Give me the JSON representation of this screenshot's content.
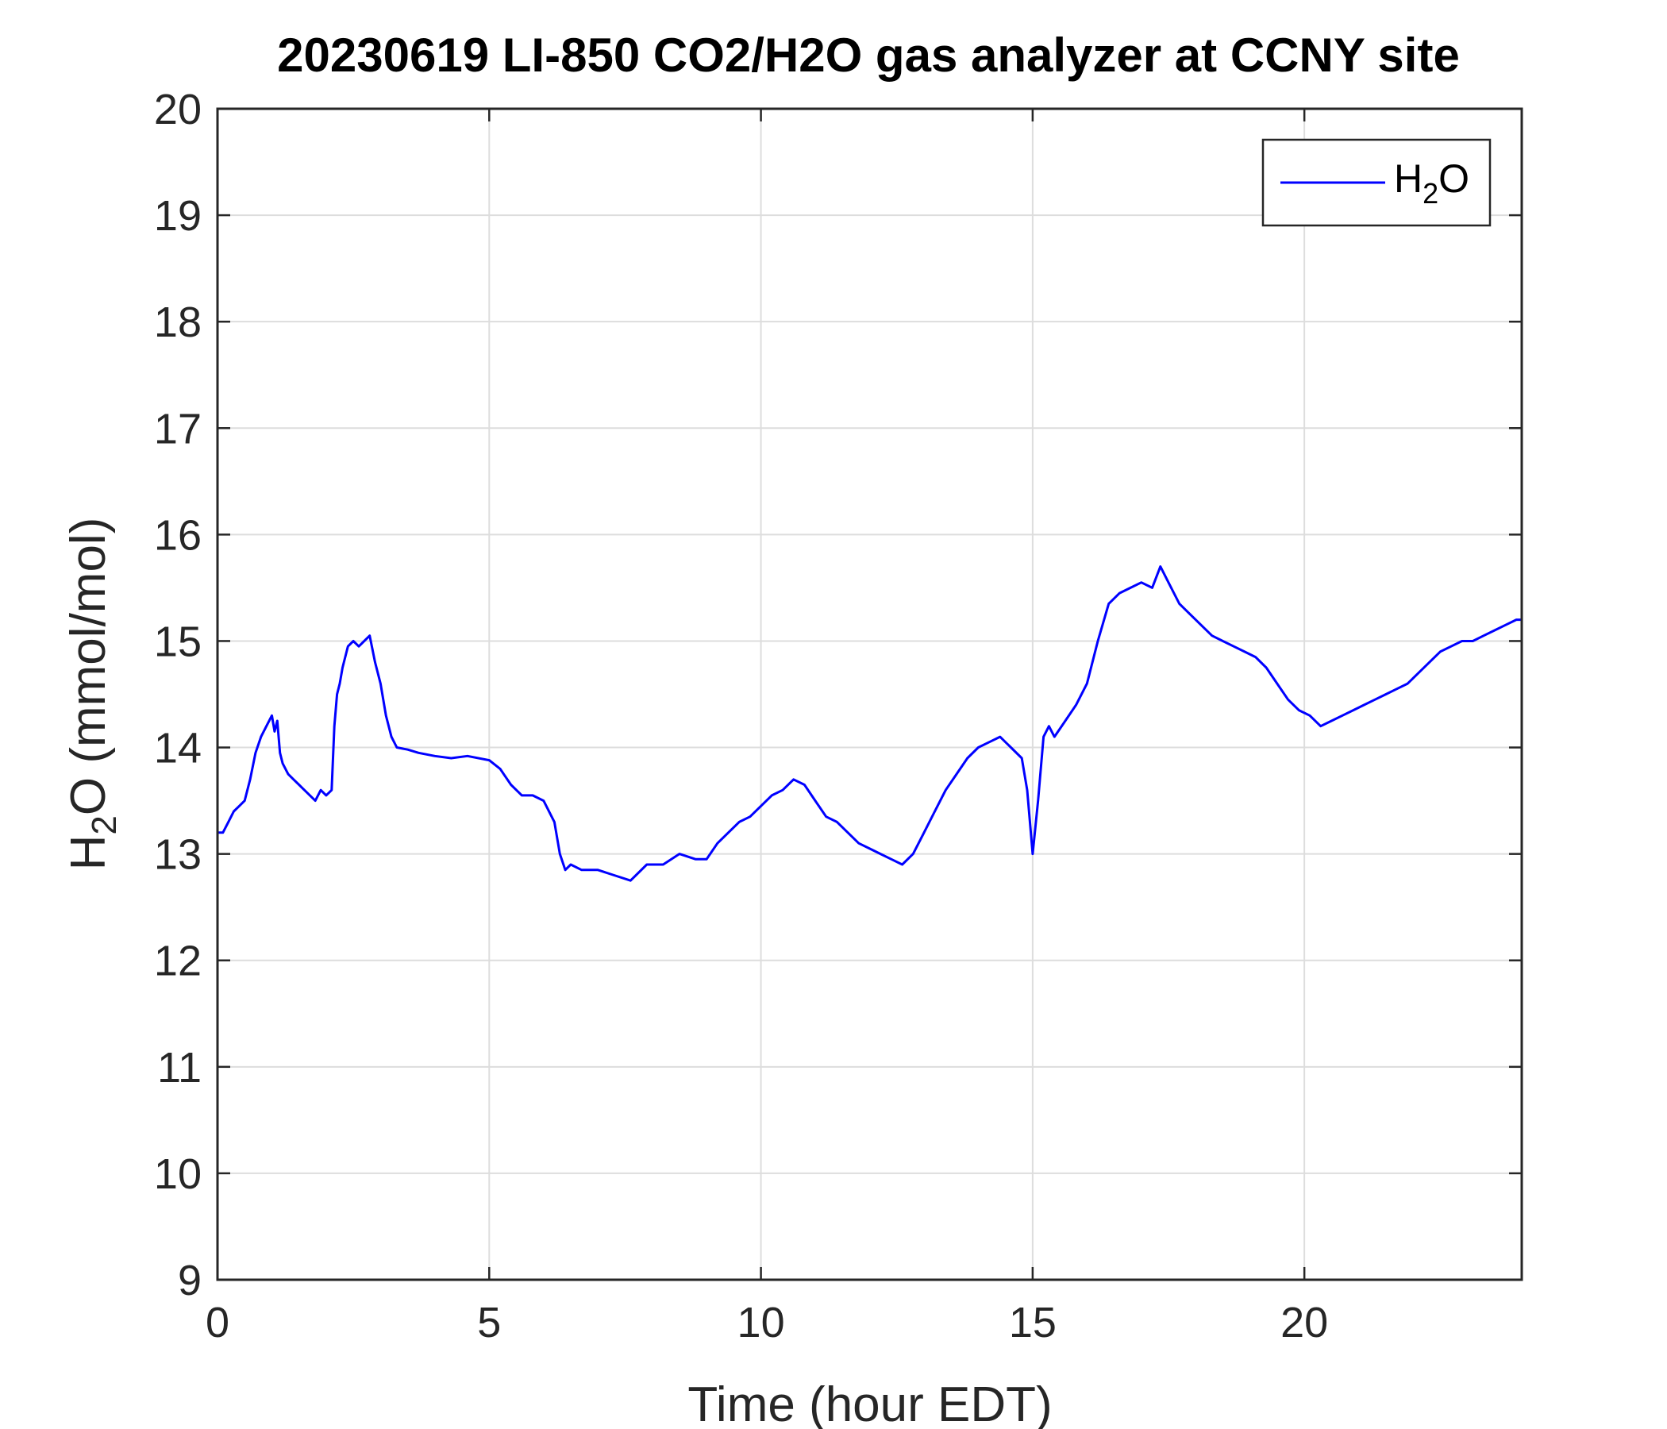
{
  "chart_data": {
    "type": "line",
    "title": "20230619 LI-850 CO2/H2O gas analyzer at CCNY site",
    "xlabel": "Time (hour EDT)",
    "ylabel": {
      "prefix": "H",
      "subscript": "2",
      "suffix": "O (mmol/mol)"
    },
    "xlim": [
      0,
      24
    ],
    "ylim": [
      9,
      20
    ],
    "xticks": [
      0,
      5,
      10,
      15,
      20
    ],
    "yticks": [
      9,
      10,
      11,
      12,
      13,
      14,
      15,
      16,
      17,
      18,
      19,
      20
    ],
    "grid": true,
    "legend": {
      "location": "top-right",
      "entries": [
        {
          "prefix": "H",
          "subscript": "2",
          "suffix": "O"
        }
      ]
    },
    "series": [
      {
        "name": "H2O",
        "color": "#0000ff",
        "x": [
          0,
          0.1,
          0.2,
          0.3,
          0.4,
          0.5,
          0.6,
          0.7,
          0.8,
          0.9,
          1.0,
          1.05,
          1.1,
          1.15,
          1.2,
          1.3,
          1.4,
          1.5,
          1.6,
          1.7,
          1.8,
          1.9,
          2.0,
          2.1,
          2.15,
          2.2,
          2.25,
          2.3,
          2.4,
          2.5,
          2.6,
          2.7,
          2.8,
          2.9,
          3.0,
          3.1,
          3.2,
          3.3,
          3.5,
          3.7,
          4.0,
          4.3,
          4.6,
          5.0,
          5.2,
          5.4,
          5.6,
          5.8,
          6.0,
          6.2,
          6.3,
          6.4,
          6.5,
          6.7,
          7.0,
          7.3,
          7.6,
          7.9,
          8.2,
          8.5,
          8.8,
          9.0,
          9.2,
          9.4,
          9.6,
          9.8,
          10.0,
          10.2,
          10.4,
          10.6,
          10.8,
          11.0,
          11.2,
          11.4,
          11.6,
          11.8,
          12.0,
          12.2,
          12.4,
          12.6,
          12.8,
          13.0,
          13.2,
          13.4,
          13.6,
          13.8,
          14.0,
          14.2,
          14.4,
          14.6,
          14.8,
          14.9,
          15.0,
          15.1,
          15.2,
          15.3,
          15.4,
          15.6,
          15.8,
          16.0,
          16.2,
          16.4,
          16.6,
          16.8,
          17.0,
          17.2,
          17.35,
          17.5,
          17.7,
          17.9,
          18.1,
          18.3,
          18.5,
          18.7,
          18.9,
          19.1,
          19.3,
          19.5,
          19.7,
          19.9,
          20.1,
          20.3,
          20.5,
          20.7,
          20.9,
          21.1,
          21.3,
          21.5,
          21.7,
          21.9,
          22.1,
          22.3,
          22.5,
          22.7,
          22.9,
          23.1,
          23.3,
          23.5,
          23.7,
          23.9,
          24.0
        ],
        "y": [
          13.2,
          13.2,
          13.3,
          13.4,
          13.45,
          13.5,
          13.7,
          13.95,
          14.1,
          14.2,
          14.3,
          14.15,
          14.25,
          13.95,
          13.85,
          13.75,
          13.7,
          13.65,
          13.6,
          13.55,
          13.5,
          13.6,
          13.55,
          13.6,
          14.2,
          14.5,
          14.6,
          14.75,
          14.95,
          15.0,
          14.95,
          15.0,
          15.05,
          14.8,
          14.6,
          14.3,
          14.1,
          14.0,
          13.98,
          13.95,
          13.92,
          13.9,
          13.92,
          13.88,
          13.8,
          13.65,
          13.55,
          13.55,
          13.5,
          13.3,
          13.0,
          12.85,
          12.9,
          12.85,
          12.85,
          12.8,
          12.75,
          12.9,
          12.9,
          13.0,
          12.95,
          12.95,
          13.1,
          13.2,
          13.3,
          13.35,
          13.45,
          13.55,
          13.6,
          13.7,
          13.65,
          13.5,
          13.35,
          13.3,
          13.2,
          13.1,
          13.05,
          13.0,
          12.95,
          12.9,
          13.0,
          13.2,
          13.4,
          13.6,
          13.75,
          13.9,
          14.0,
          14.05,
          14.1,
          14.0,
          13.9,
          13.6,
          13.0,
          13.5,
          14.1,
          14.2,
          14.1,
          14.25,
          14.4,
          14.6,
          15.0,
          15.35,
          15.45,
          15.5,
          15.55,
          15.5,
          15.7,
          15.55,
          15.35,
          15.25,
          15.15,
          15.05,
          15.0,
          14.95,
          14.9,
          14.85,
          14.75,
          14.6,
          14.45,
          14.35,
          14.3,
          14.2,
          14.25,
          14.3,
          14.35,
          14.4,
          14.45,
          14.5,
          14.55,
          14.6,
          14.7,
          14.8,
          14.9,
          14.95,
          15.0,
          15.0,
          15.05,
          15.1,
          15.15,
          15.2,
          15.2
        ]
      }
    ]
  }
}
